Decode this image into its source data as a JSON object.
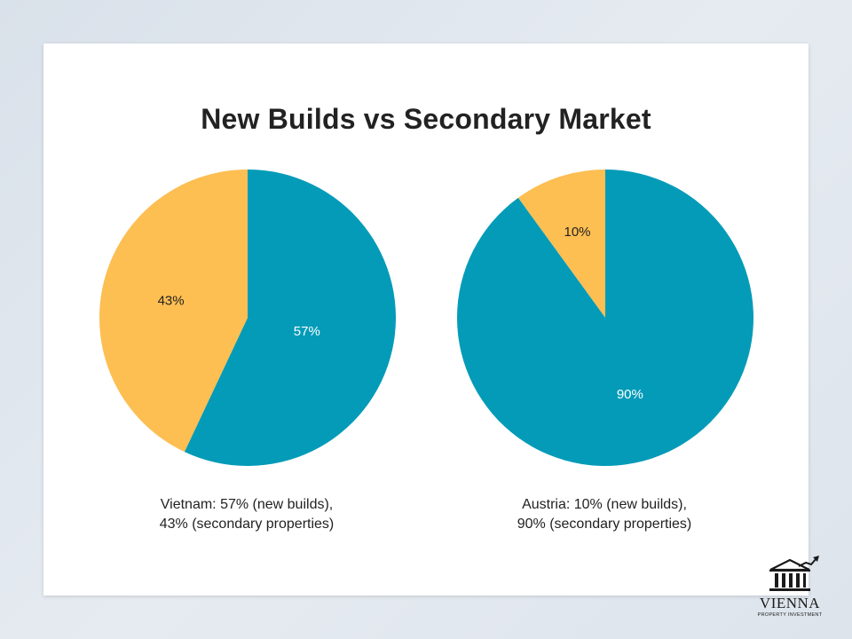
{
  "title": "New Builds vs Secondary Market",
  "chart_data": [
    {
      "type": "pie",
      "title": "",
      "slices": [
        {
          "label": "New builds",
          "value": 57,
          "display": "57%",
          "color": "#039bb8"
        },
        {
          "label": "Secondary properties",
          "value": 43,
          "display": "43%",
          "color": "#fdbe52"
        }
      ],
      "caption": [
        "Vietnam: 57% (new builds),",
        "43% (secondary properties)"
      ]
    },
    {
      "type": "pie",
      "title": "",
      "slices": [
        {
          "label": "New builds",
          "value": 10,
          "display": "10%",
          "color": "#fdbe52"
        },
        {
          "label": "Secondary properties",
          "value": 90,
          "display": "90%",
          "color": "#039bb8"
        }
      ],
      "caption": [
        "Austria: 10% (new builds),",
        "90% (secondary properties)"
      ]
    }
  ],
  "logo": {
    "name": "VIENNA",
    "tagline": "PROPERTY INVESTMENT",
    "icon": "building-with-arrow-icon"
  }
}
